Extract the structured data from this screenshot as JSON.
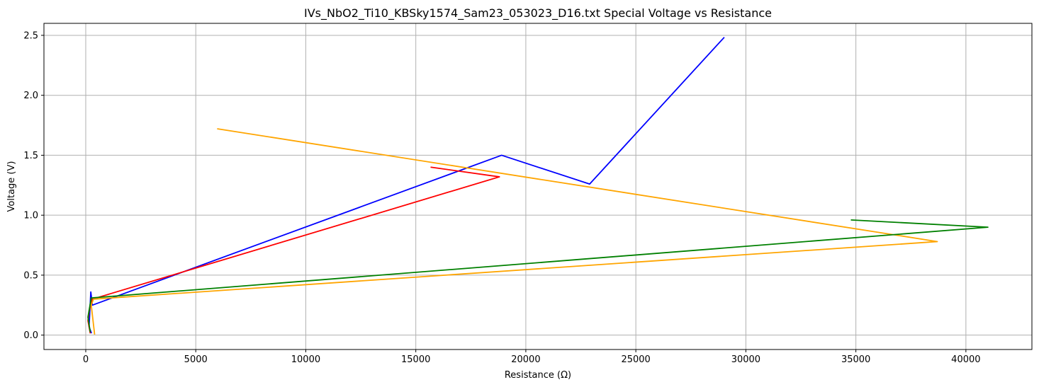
{
  "chart_data": {
    "type": "line",
    "title": "IVs_NbO2_Ti10_KBSky1574_Sam23_053023_D16.txt Special Voltage vs Resistance",
    "xlabel": "Resistance (Ω)",
    "ylabel": "Voltage (V)",
    "xlim": [
      -1900,
      43000
    ],
    "ylim": [
      -0.12,
      2.6
    ],
    "xticks": [
      0,
      5000,
      10000,
      15000,
      20000,
      25000,
      30000,
      35000,
      40000
    ],
    "xtick_labels": [
      "0",
      "5000",
      "10000",
      "15000",
      "20000",
      "25000",
      "30000",
      "35000",
      "40000"
    ],
    "yticks": [
      0.0,
      0.5,
      1.0,
      1.5,
      2.0,
      2.5
    ],
    "ytick_labels": [
      "0.0",
      "0.5",
      "1.0",
      "1.5",
      "2.0",
      "2.5"
    ],
    "grid": true,
    "series": [
      {
        "color": "#0000ff",
        "points": [
          [
            250,
            0.02
          ],
          [
            150,
            0.07
          ],
          [
            230,
            0.36
          ],
          [
            300,
            0.25
          ],
          [
            18900,
            1.5
          ],
          [
            22900,
            1.26
          ],
          [
            29000,
            2.48
          ]
        ]
      },
      {
        "color": "#ff0000",
        "points": [
          [
            200,
            0.02
          ],
          [
            100,
            0.12
          ],
          [
            150,
            0.2
          ],
          [
            300,
            0.3
          ],
          [
            18800,
            1.32
          ],
          [
            15700,
            1.4
          ]
        ]
      },
      {
        "color": "#ffa500",
        "points": [
          [
            400,
            0.01
          ],
          [
            250,
            0.25
          ],
          [
            350,
            0.3
          ],
          [
            38700,
            0.78
          ],
          [
            6000,
            1.72
          ]
        ]
      },
      {
        "color": "#008000",
        "points": [
          [
            200,
            0.03
          ],
          [
            100,
            0.15
          ],
          [
            250,
            0.31
          ],
          [
            41000,
            0.9
          ],
          [
            34800,
            0.96
          ]
        ]
      }
    ]
  }
}
